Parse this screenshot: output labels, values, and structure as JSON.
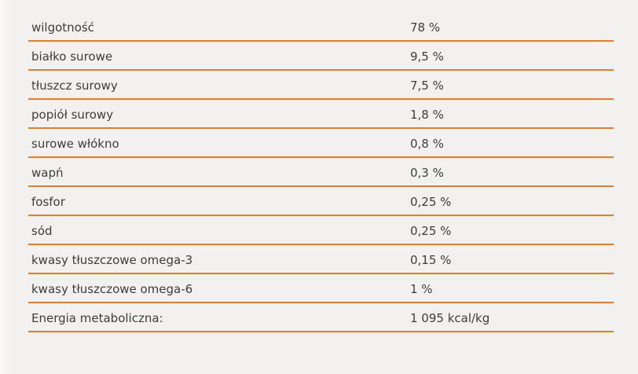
{
  "colors": {
    "background": "#f2f1f0",
    "separator": "#d9813a",
    "separator_highlight": "#f8e4c3",
    "text": "#3d3d3d"
  },
  "table": {
    "rows": [
      {
        "label": "wilgotność",
        "value": "78 %"
      },
      {
        "label": "białko surowe",
        "value": "9,5 %"
      },
      {
        "label": "tłuszcz surowy",
        "value": "7,5 %"
      },
      {
        "label": "popiół surowy",
        "value": "1,8 %"
      },
      {
        "label": "surowe włókno",
        "value": "0,8 %"
      },
      {
        "label": "wapń",
        "value": "0,3 %"
      },
      {
        "label": "fosfor",
        "value": "0,25 %"
      },
      {
        "label": "sód",
        "value": "0,25 %"
      },
      {
        "label": "kwasy tłuszczowe omega-3",
        "value": "0,15 %"
      },
      {
        "label": "kwasy tłuszczowe omega-6",
        "value": "1 %"
      },
      {
        "label": "Energia metaboliczna:",
        "value": "1 095 kcal/kg"
      }
    ]
  },
  "chart_data": {
    "type": "table",
    "rows": [
      [
        "wilgotność",
        "78 %"
      ],
      [
        "białko surowe",
        "9,5 %"
      ],
      [
        "tłuszcz surowy",
        "7,5 %"
      ],
      [
        "popiół surowy",
        "1,8 %"
      ],
      [
        "surowe włókno",
        "0,8 %"
      ],
      [
        "wapń",
        "0,3 %"
      ],
      [
        "fosfor",
        "0,25 %"
      ],
      [
        "sód",
        "0,25 %"
      ],
      [
        "kwasy tłuszczowe omega-3",
        "0,15 %"
      ],
      [
        "kwasy tłuszczowe omega-6",
        "1 %"
      ],
      [
        "Energia metaboliczna:",
        "1 095 kcal/kg"
      ]
    ]
  }
}
